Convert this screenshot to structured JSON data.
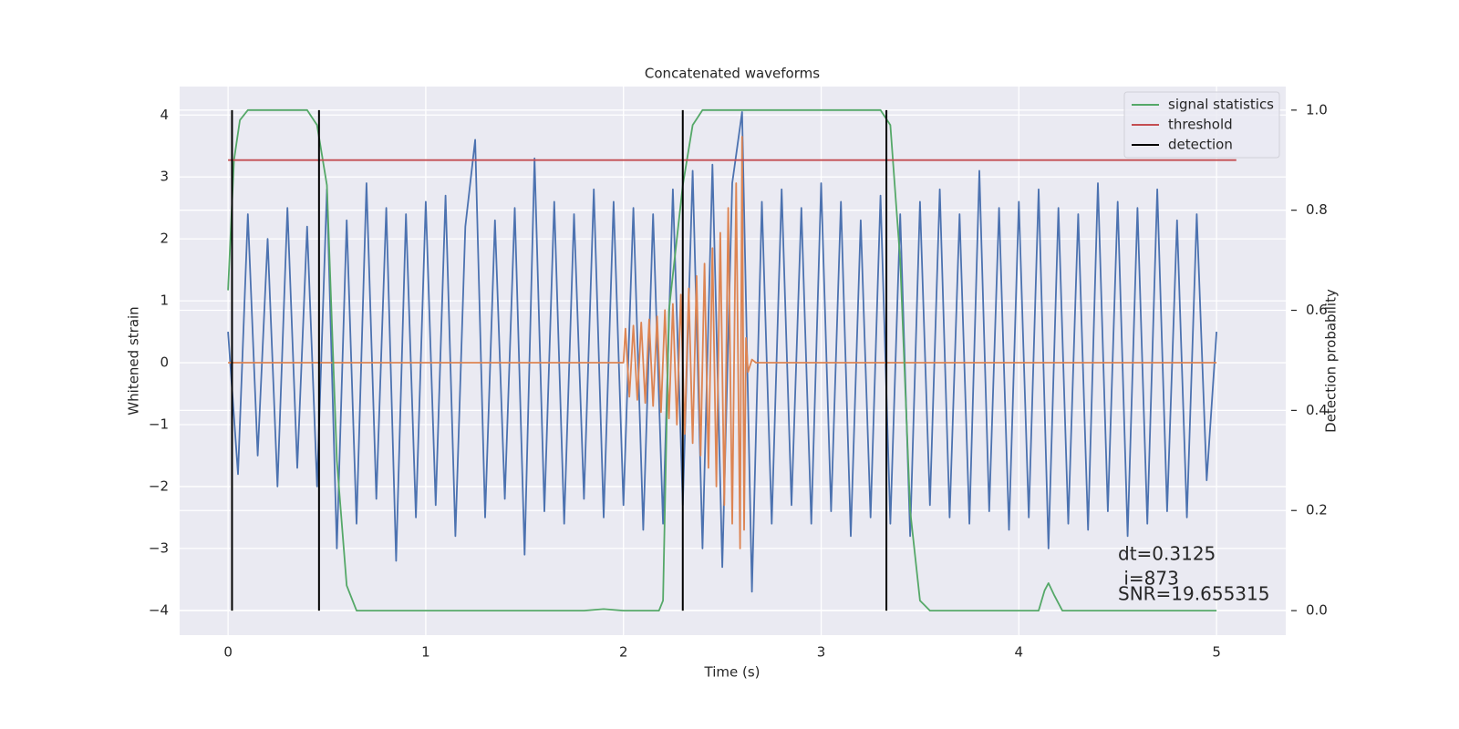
{
  "chart_data": {
    "type": "line",
    "title": "Concatenated waveforms",
    "x_label": "Time (s)",
    "y_label": "Whitened strain",
    "y2_label": "Detection probability",
    "xlim": [
      -0.245,
      5.35
    ],
    "ylim": [
      -4.4,
      4.46
    ],
    "y2lim": [
      -0.049,
      1.047
    ],
    "xticks": [
      0,
      1,
      2,
      3,
      4,
      5
    ],
    "yticks": [
      {
        "value": -4,
        "label": "−4"
      },
      {
        "value": -3,
        "label": "−3"
      },
      {
        "value": -2,
        "label": "−2"
      },
      {
        "value": -1,
        "label": "−1"
      },
      0,
      1,
      2,
      3,
      4
    ],
    "y2ticks": [
      {
        "value": 0,
        "label": "0.0"
      },
      {
        "value": 0.2,
        "label": "0.2"
      },
      {
        "value": 0.4,
        "label": "0.4"
      },
      {
        "value": 0.6,
        "label": "0.6"
      },
      {
        "value": 0.8,
        "label": "0.8"
      },
      {
        "value": 1,
        "label": "1.0"
      }
    ],
    "grid": true,
    "legend": "upper right",
    "series": [
      {
        "color": "#4c72b0",
        "x": [
          0,
          0.05,
          0.1,
          0.15,
          0.2,
          0.25,
          0.3,
          0.35,
          0.4,
          0.45,
          0.5,
          0.55,
          0.6,
          0.65,
          0.7,
          0.75,
          0.8,
          0.85,
          0.9,
          0.95,
          1,
          1.05,
          1.1,
          1.15,
          1.2,
          1.25,
          1.3,
          1.35,
          1.4,
          1.45,
          1.5,
          1.55,
          1.6,
          1.65,
          1.7,
          1.75,
          1.8,
          1.85,
          1.9,
          1.95,
          2,
          2.05,
          2.1,
          2.15,
          2.2,
          2.25,
          2.3,
          2.35,
          2.4,
          2.45,
          2.5,
          2.55,
          2.6,
          2.65,
          2.7,
          2.75,
          2.8,
          2.85,
          2.9,
          2.95,
          3,
          3.05,
          3.1,
          3.15,
          3.2,
          3.25,
          3.3,
          3.35,
          3.4,
          3.45,
          3.5,
          3.55,
          3.6,
          3.65,
          3.7,
          3.75,
          3.8,
          3.85,
          3.9,
          3.95,
          4,
          4.05,
          4.1,
          4.15,
          4.2,
          4.25,
          4.3,
          4.35,
          4.4,
          4.45,
          4.5,
          4.55,
          4.6,
          4.65,
          4.7,
          4.75,
          4.8,
          4.85,
          4.9,
          4.95,
          5
        ],
        "values": [
          0.5,
          -1.8,
          2.4,
          -1.5,
          2.0,
          -2.0,
          2.5,
          -1.7,
          2.2,
          -2.0,
          2.8,
          -3.0,
          2.3,
          -2.6,
          2.9,
          -2.2,
          2.5,
          -3.2,
          2.4,
          -2.5,
          2.6,
          -2.3,
          2.7,
          -2.8,
          2.2,
          3.6,
          -2.5,
          2.3,
          -2.2,
          2.5,
          -3.1,
          3.3,
          -2.4,
          2.6,
          -2.6,
          2.4,
          -2.2,
          2.8,
          -2.5,
          2.6,
          -2.3,
          2.5,
          -2.7,
          2.4,
          -2.6,
          2.8,
          -2.3,
          3.1,
          -3.0,
          3.2,
          -3.3,
          2.9,
          4.05,
          -3.7,
          2.6,
          -2.6,
          2.8,
          -2.3,
          2.5,
          -2.6,
          2.9,
          -2.4,
          2.6,
          -2.8,
          2.3,
          -2.5,
          2.7,
          -2.6,
          2.4,
          -2.8,
          2.6,
          -2.3,
          2.8,
          -2.5,
          2.4,
          -2.6,
          3.1,
          -2.4,
          2.5,
          -2.7,
          2.6,
          -2.5,
          2.8,
          -3.0,
          2.5,
          -2.6,
          2.4,
          -2.7,
          2.9,
          -2.4,
          2.6,
          -2.8,
          2.5,
          -2.6,
          2.8,
          -2.4,
          2.3,
          -2.5,
          2.4,
          -1.9,
          0.5
        ]
      },
      {
        "color": "#dd8452",
        "x": [
          0,
          2.0,
          2.01,
          2.03,
          2.05,
          2.07,
          2.09,
          2.11,
          2.13,
          2.15,
          2.17,
          2.19,
          2.21,
          2.23,
          2.25,
          2.27,
          2.29,
          2.31,
          2.33,
          2.35,
          2.37,
          2.39,
          2.41,
          2.43,
          2.45,
          2.47,
          2.49,
          2.51,
          2.53,
          2.55,
          2.57,
          2.59,
          2.6,
          2.61,
          2.62,
          2.63,
          2.65,
          2.67,
          5.0
        ],
        "values": [
          0,
          0,
          0.55,
          -0.55,
          0.6,
          -0.6,
          0.65,
          -0.65,
          0.7,
          -0.7,
          0.75,
          -0.8,
          0.85,
          -0.9,
          0.95,
          -1.0,
          1.1,
          -1.15,
          1.2,
          -1.3,
          1.4,
          -1.5,
          1.6,
          -1.7,
          1.85,
          -2.0,
          2.1,
          -2.3,
          2.5,
          -2.6,
          2.9,
          -3.0,
          3.65,
          -2.7,
          0.4,
          -0.15,
          0.05,
          0,
          0
        ]
      },
      {
        "name": "signal statistics",
        "color": "#55a868",
        "axis": "y2",
        "x": [
          0,
          0.03,
          0.06,
          0.1,
          0.4,
          0.45,
          0.5,
          0.55,
          0.6,
          0.65,
          1.8,
          1.9,
          2.0,
          2.18,
          2.2,
          2.23,
          2.3,
          2.35,
          2.4,
          3.3,
          3.35,
          3.4,
          3.45,
          3.5,
          3.55,
          4.1,
          4.13,
          4.15,
          4.18,
          4.22,
          5.0
        ],
        "values": [
          0.64,
          0.9,
          0.98,
          1.0,
          1.0,
          0.97,
          0.85,
          0.3,
          0.05,
          0.0,
          0.0,
          0.003,
          0.0,
          0.0,
          0.02,
          0.6,
          0.85,
          0.97,
          1.0,
          1.0,
          0.97,
          0.7,
          0.2,
          0.02,
          0.0,
          0.0,
          0.04,
          0.055,
          0.03,
          0.0,
          0.0
        ]
      },
      {
        "name": "threshold",
        "color": "#c44e52",
        "axis": "y2",
        "x": [
          0,
          5.1
        ],
        "values": [
          0.9,
          0.9
        ]
      },
      {
        "name": "detection",
        "color": "#000000",
        "axis": "y2",
        "kind": "vlines",
        "x": [
          0.02,
          0.46,
          2.3,
          3.33
        ],
        "values": [
          1,
          1,
          1,
          1
        ]
      }
    ],
    "annotations": [
      "dt=0.3125",
      " i=873",
      "SNR=19.655315"
    ]
  }
}
